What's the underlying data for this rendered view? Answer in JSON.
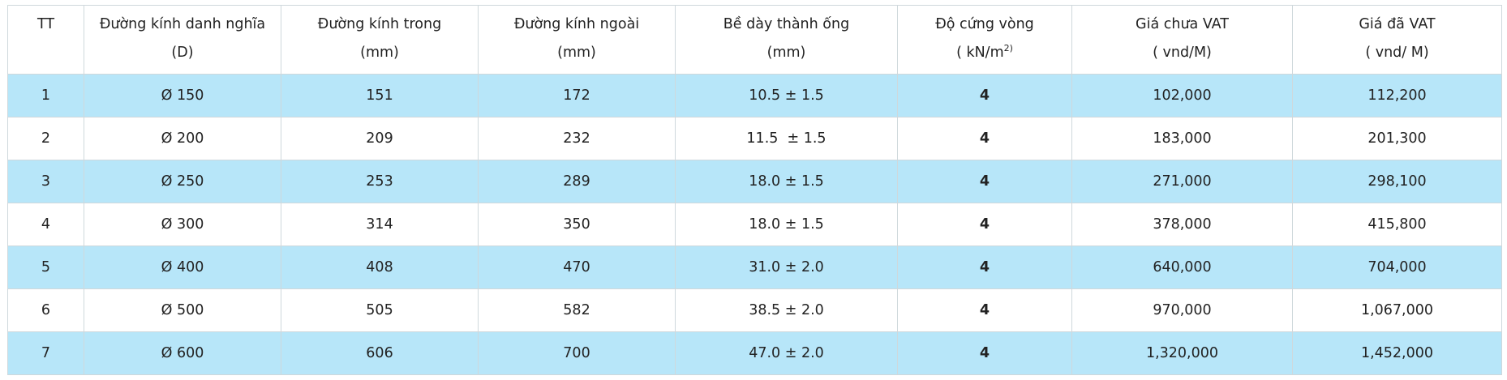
{
  "headers": [
    {
      "line1": "TT",
      "line2": ""
    },
    {
      "line1": "Đường kính danh nghĩa",
      "line2": "(D)"
    },
    {
      "line1": "Đường kính trong",
      "line2": "(mm)"
    },
    {
      "line1": "Đường kính ngoài",
      "line2": "(mm)"
    },
    {
      "line1": "Bề dày thành ống",
      "line2": "(mm)"
    },
    {
      "line1": "Độ cứng vòng",
      "line2": "( kN/m",
      "line2_sup": "2)"
    },
    {
      "line1": "Giá chưa VAT",
      "line2": "( vnd/M)"
    },
    {
      "line1": "Giá đã VAT",
      "line2": "( vnd/ M)"
    }
  ],
  "rows": [
    {
      "tt": "1",
      "dn": "Ø 150",
      "inner": "151",
      "outer": "172",
      "wall": "10.5 ± 1.5",
      "stiff": "4",
      "price": "102,000",
      "price_vat": "112,200"
    },
    {
      "tt": "2",
      "dn": "Ø 200",
      "inner": "209",
      "outer": "232",
      "wall": "11.5  ± 1.5",
      "stiff": "4",
      "price": "183,000",
      "price_vat": "201,300"
    },
    {
      "tt": "3",
      "dn": "Ø 250",
      "inner": "253",
      "outer": "289",
      "wall": "18.0 ± 1.5",
      "stiff": "4",
      "price": "271,000",
      "price_vat": "298,100"
    },
    {
      "tt": "4",
      "dn": "Ø 300",
      "inner": "314",
      "outer": "350",
      "wall": "18.0 ± 1.5",
      "stiff": "4",
      "price": "378,000",
      "price_vat": "415,800"
    },
    {
      "tt": "5",
      "dn": "Ø 400",
      "inner": "408",
      "outer": "470",
      "wall": "31.0 ± 2.0",
      "stiff": "4",
      "price": "640,000",
      "price_vat": "704,000"
    },
    {
      "tt": "6",
      "dn": "Ø 500",
      "inner": "505",
      "outer": "582",
      "wall": "38.5 ± 2.0",
      "stiff": "4",
      "price": "970,000",
      "price_vat": "1,067,000"
    },
    {
      "tt": "7",
      "dn": "Ø 600",
      "inner": "606",
      "outer": "700",
      "wall": "47.0 ± 2.0",
      "stiff": "4",
      "price": "1,320,000",
      "price_vat": "1,452,000"
    }
  ],
  "colors": {
    "row_highlight": "#b7e6f9",
    "border": "#cfd8dc"
  }
}
